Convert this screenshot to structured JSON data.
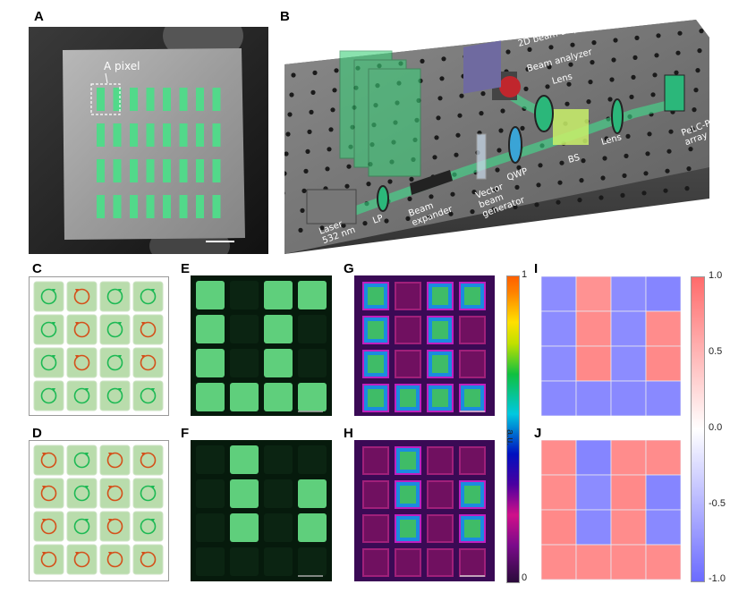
{
  "panels": {
    "A": {
      "label": "A",
      "annotation": "A pixel"
    },
    "B": {
      "label": "B",
      "components": [
        "Laser\n532 nm",
        "LP",
        "Beam\nexpander",
        "Vector\nbeam\ngenerator",
        "QWP",
        "BS",
        "Lens",
        "Lens",
        "Beam analyzer",
        "2D beam display",
        "PeLC-PD\narray device"
      ]
    },
    "C": {
      "label": "C",
      "pixels": [
        [
          "green",
          "red",
          "green",
          "green"
        ],
        [
          "green",
          "red",
          "green",
          "red"
        ],
        [
          "green",
          "red",
          "green",
          "red"
        ],
        [
          "green",
          "green",
          "green",
          "green"
        ]
      ]
    },
    "D": {
      "label": "D",
      "pixels": [
        [
          "red",
          "green",
          "red",
          "red"
        ],
        [
          "red",
          "green",
          "red",
          "green"
        ],
        [
          "red",
          "green",
          "red",
          "green"
        ],
        [
          "red",
          "red",
          "red",
          "red"
        ]
      ]
    },
    "E": {
      "label": "E",
      "bright": [
        [
          1,
          0,
          1,
          1
        ],
        [
          1,
          0,
          1,
          0
        ],
        [
          1,
          0,
          1,
          0
        ],
        [
          1,
          1,
          1,
          1
        ]
      ]
    },
    "F": {
      "label": "F",
      "bright": [
        [
          0,
          1,
          0,
          0
        ],
        [
          0,
          1,
          0,
          1
        ],
        [
          0,
          1,
          0,
          1
        ],
        [
          0,
          0,
          0,
          0
        ]
      ]
    },
    "G": {
      "label": "G",
      "bright": [
        [
          1,
          0,
          1,
          1
        ],
        [
          1,
          0,
          1,
          0
        ],
        [
          1,
          0,
          1,
          0
        ],
        [
          1,
          1,
          1,
          1
        ]
      ]
    },
    "H": {
      "label": "H",
      "bright": [
        [
          0,
          1,
          0,
          0
        ],
        [
          0,
          1,
          0,
          1
        ],
        [
          0,
          1,
          0,
          1
        ],
        [
          0,
          0,
          0,
          0
        ]
      ]
    },
    "I": {
      "label": "I"
    },
    "J": {
      "label": "J"
    }
  },
  "colorbar_au": {
    "max_label": "1",
    "min_label": "0",
    "unit": "a.u.",
    "colormap": "rainbow (black-purple-magenta-blue-cyan-green-yellow-orange)"
  },
  "colors": {
    "green_pixel": "#1db954",
    "red_pixel": "#d4501a",
    "pixel_bg": "#b9dcac",
    "heat_pos": "#ff7f7f",
    "heat_neg": "#7f7fff"
  },
  "chart_data": [
    {
      "type": "heatmap",
      "title": "I",
      "rows": 4,
      "cols": 4,
      "values": [
        [
          -0.9,
          0.85,
          -0.9,
          -0.95
        ],
        [
          -0.9,
          0.9,
          -0.9,
          0.9
        ],
        [
          -0.9,
          0.92,
          -0.9,
          0.92
        ],
        [
          -0.92,
          -0.92,
          -0.92,
          -0.92
        ]
      ],
      "zlim": [
        -1.0,
        1.0
      ],
      "colorbar_ticks": [
        "1.0",
        "0.5",
        "0.0",
        "-0.5",
        "-1.0"
      ],
      "colormap": "blue-white-red"
    },
    {
      "type": "heatmap",
      "title": "J",
      "rows": 4,
      "cols": 4,
      "values": [
        [
          0.9,
          -0.95,
          0.9,
          0.9
        ],
        [
          0.9,
          -0.9,
          0.92,
          -0.95
        ],
        [
          0.92,
          -0.92,
          0.9,
          -0.92
        ],
        [
          0.9,
          0.9,
          0.9,
          0.9
        ]
      ],
      "zlim": [
        -1.0,
        1.0
      ],
      "colorbar_ticks": [
        "1.0",
        "0.5",
        "0.0",
        "-0.5",
        "-1.0"
      ],
      "colormap": "blue-white-red"
    }
  ]
}
